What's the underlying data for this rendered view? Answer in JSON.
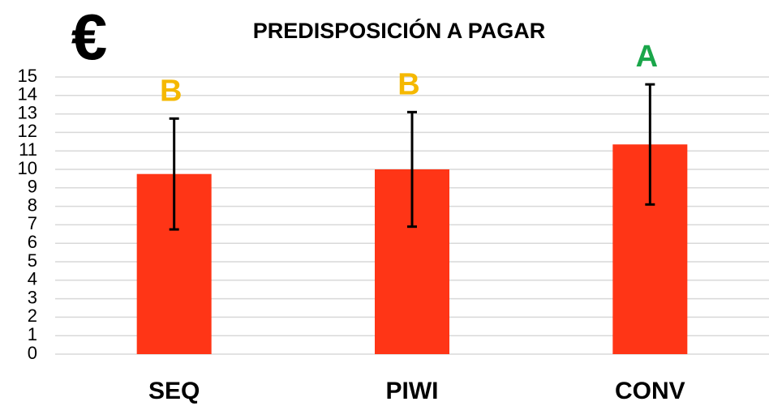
{
  "chart_data": {
    "type": "bar",
    "title": "PREDISPOSICIÓN A PAGAR",
    "currency_symbol": "€",
    "categories": [
      "SEQ",
      "PIWI",
      "CONV"
    ],
    "values": [
      9.75,
      10.0,
      11.35
    ],
    "errors": [
      3.0,
      3.1,
      3.25
    ],
    "annotations": [
      {
        "text": "B",
        "color": "#f5b800"
      },
      {
        "text": "B",
        "color": "#f5b800"
      },
      {
        "text": "A",
        "color": "#1aa64a"
      }
    ],
    "color": "#ff3516",
    "ylim": [
      0,
      15
    ],
    "yticks": [
      0,
      1,
      2,
      3,
      4,
      5,
      6,
      7,
      8,
      9,
      10,
      11,
      12,
      13,
      14,
      15
    ],
    "grid": true
  }
}
